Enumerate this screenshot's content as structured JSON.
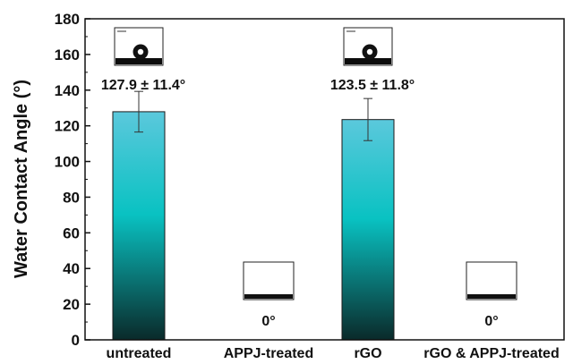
{
  "chart_data": {
    "type": "bar",
    "categories": [
      "untreated",
      "APPJ-treated",
      "rGO",
      "rGO & APPJ-treated"
    ],
    "values": [
      127.9,
      0,
      123.5,
      0
    ],
    "errors": [
      11.4,
      0,
      11.8,
      0
    ],
    "value_labels": [
      "127.9 ± 11.4°",
      "0°",
      "123.5 ± 11.8°",
      "0°"
    ],
    "inset_images": [
      "droplet-high-contact-angle",
      "spread-film-zero-angle",
      "droplet-high-contact-angle",
      "spread-film-zero-angle"
    ],
    "title": "",
    "xlabel": "",
    "ylabel": "Water Contact Angle (°)",
    "ylim": [
      0,
      180
    ],
    "yticks": [
      0,
      20,
      40,
      60,
      80,
      100,
      120,
      140,
      160,
      180
    ],
    "grid": false,
    "legend": "none",
    "bar_gradient": [
      "#5bc8dc",
      "#09c2c2",
      "#0a2a2a"
    ]
  }
}
